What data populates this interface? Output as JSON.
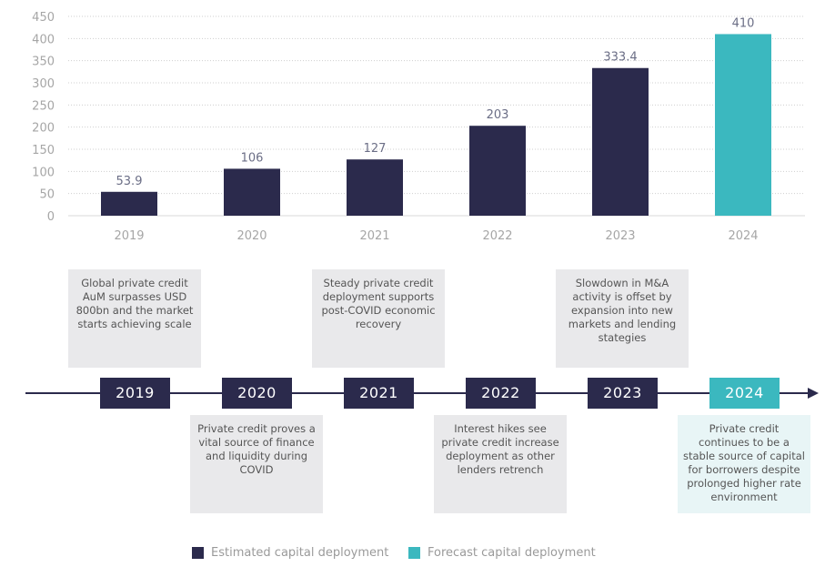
{
  "chart_data": {
    "type": "bar",
    "title": "",
    "xlabel": "",
    "ylabel": "",
    "categories": [
      "2019",
      "2020",
      "2021",
      "2022",
      "2023",
      "2024"
    ],
    "values": [
      53.9,
      106,
      127,
      203,
      333.4,
      410
    ],
    "value_labels": [
      "53.9",
      "106",
      "127",
      "203",
      "333.4",
      "410"
    ],
    "series_type": [
      "estimated",
      "estimated",
      "estimated",
      "estimated",
      "estimated",
      "forecast"
    ],
    "ylim": [
      0,
      450
    ],
    "yticks": [
      0,
      50,
      100,
      150,
      200,
      250,
      300,
      350,
      400,
      450
    ],
    "grid": true,
    "legend_position": "bottom",
    "legend": [
      {
        "name": "Estimated capital deployment",
        "color": "#2b2a4c"
      },
      {
        "name": "Forecast capital deployment",
        "color": "#3bb8bf"
      }
    ]
  },
  "colors": {
    "estimated": "#2b2a4c",
    "forecast": "#3bb8bf",
    "note_bg": "#e9e9eb",
    "note_forecast_bg": "#e8f5f6"
  },
  "timeline": {
    "years": [
      {
        "label": "2019",
        "note": "Global private credit AuM surpasses USD 800bn and the market starts achieving scale",
        "position": "above",
        "forecast": false
      },
      {
        "label": "2020",
        "note": "Private credit proves a vital source of finance and liquidity during COVID",
        "position": "below",
        "forecast": false
      },
      {
        "label": "2021",
        "note": "Steady private credit deployment supports post-COVID economic recovery",
        "position": "above",
        "forecast": false
      },
      {
        "label": "2022",
        "note": "Interest hikes see private credit increase deployment as other lenders retrench",
        "position": "below",
        "forecast": false
      },
      {
        "label": "2023",
        "note": "Slowdown in M&A activity is offset by expansion into new markets and lending stategies",
        "position": "above",
        "forecast": false
      },
      {
        "label": "2024",
        "note": "Private credit continues to be a stable source of capital for borrowers despite prolonged higher rate environment",
        "position": "below",
        "forecast": true
      }
    ]
  }
}
